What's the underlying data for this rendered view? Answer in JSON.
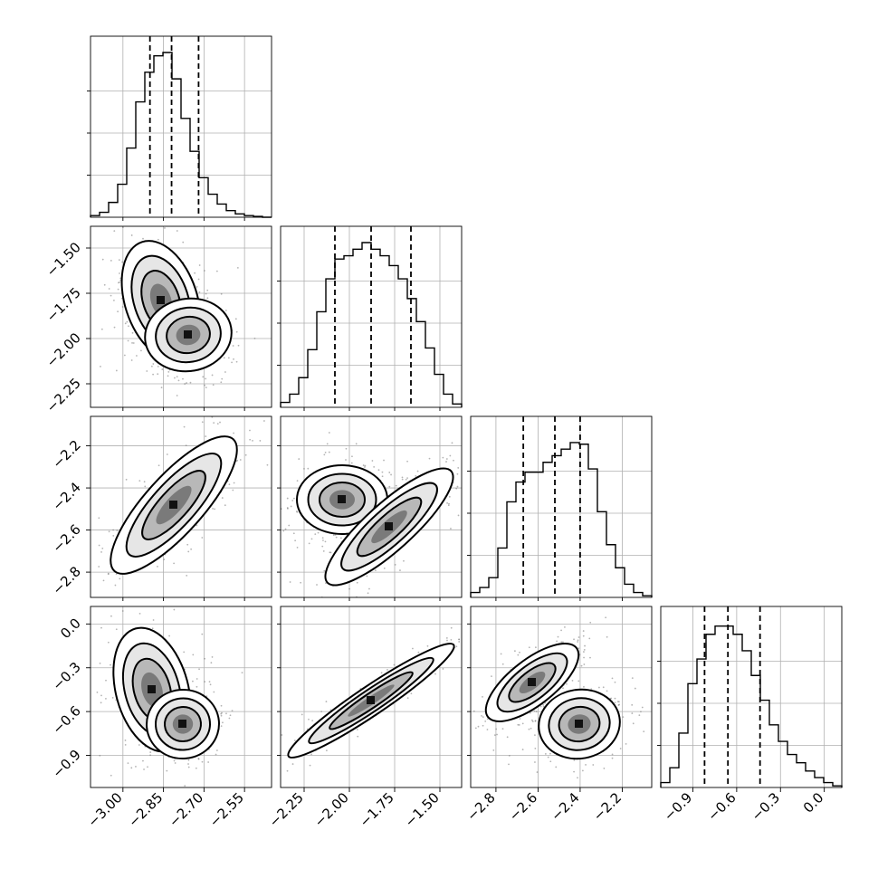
{
  "chart_data": {
    "type": "corner",
    "parameters": [
      {
        "range": [
          -3.12,
          -2.45
        ],
        "ticks": [
          -3.0,
          -2.85,
          -2.7,
          -2.55
        ],
        "tick_labels": [
          "−3.00",
          "−2.85",
          "−2.70",
          "−2.55"
        ],
        "quantiles": [
          -2.9,
          -2.82,
          -2.72
        ]
      },
      {
        "range": [
          -2.38,
          -1.38
        ],
        "ticks": [
          -2.25,
          -2.0,
          -1.75,
          -1.5
        ],
        "tick_labels": [
          "−2.25",
          "−2.00",
          "−1.75",
          "−1.50"
        ],
        "quantiles": [
          -2.08,
          -1.88,
          -1.66
        ]
      },
      {
        "range": [
          -2.92,
          -2.06
        ],
        "ticks": [
          -2.8,
          -2.6,
          -2.4,
          -2.2
        ],
        "tick_labels": [
          "−2.8",
          "−2.6",
          "−2.4",
          "−2.2"
        ],
        "quantiles": [
          -2.67,
          -2.52,
          -2.4
        ]
      },
      {
        "range": [
          -1.12,
          0.12
        ],
        "ticks": [
          -0.9,
          -0.6,
          -0.3,
          0.0
        ],
        "tick_labels": [
          "−0.9",
          "−0.6",
          "−0.3",
          "0.0"
        ],
        "quantiles": [
          -0.82,
          -0.66,
          -0.44
        ]
      }
    ],
    "histograms": [
      [
        1,
        3,
        9,
        20,
        42,
        70,
        88,
        98,
        100,
        84,
        60,
        40,
        24,
        14,
        8,
        4,
        2,
        1,
        0.5,
        0
      ],
      [
        3,
        8,
        18,
        35,
        58,
        78,
        90,
        92,
        96,
        100,
        96,
        92,
        86,
        78,
        66,
        52,
        36,
        20,
        8,
        2
      ],
      [
        3,
        6,
        12,
        30,
        58,
        70,
        76,
        76,
        82,
        86,
        90,
        94,
        93,
        78,
        52,
        32,
        18,
        8,
        3,
        1
      ],
      [
        3,
        12,
        33,
        63,
        78,
        93,
        98,
        98,
        93,
        83,
        68,
        53,
        38,
        28,
        20,
        15,
        10,
        6,
        3,
        1
      ]
    ],
    "grid": true,
    "contour_levels": 4
  }
}
